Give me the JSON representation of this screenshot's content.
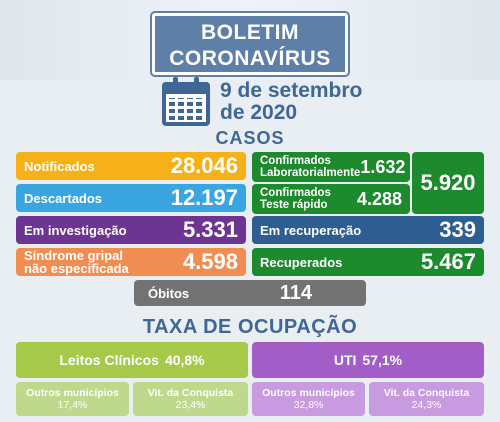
{
  "header": {
    "title_line1": "BOLETIM",
    "title_line2": "CORONAVÍRUS",
    "date_line1": "9 de setembro",
    "date_line2": "de 2020"
  },
  "casos": {
    "title": "CASOS",
    "notificados": {
      "label": "Notificados",
      "value": "28.046"
    },
    "descartados": {
      "label": "Descartados",
      "value": "12.197"
    },
    "em_investigacao": {
      "label": "Em investigação",
      "value": "5.331"
    },
    "sindrome": {
      "label_line1": "Síndrome gripal",
      "label_line2": "não especificada",
      "value": "4.598"
    },
    "conf_lab": {
      "label_line1": "Confirmados",
      "label_line2": "Laboratorialmente",
      "value": "1.632"
    },
    "conf_rapido": {
      "label_line1": "Confirmados",
      "label_line2": "Teste rápido",
      "value": "4.288"
    },
    "confirmados_total": "5.920",
    "em_recuperacao": {
      "label": "Em recuperação",
      "value": "339"
    },
    "recuperados": {
      "label": "Recuperados",
      "value": "5.467"
    },
    "obitos": {
      "label": "Óbitos",
      "value": "114"
    }
  },
  "ocupacao": {
    "title": "TAXA DE OCUPAÇÃO",
    "leitos": {
      "label": "Leitos Clínicos",
      "value": "40,8%"
    },
    "uti": {
      "label": "UTI",
      "value": "57,1%"
    },
    "leitos_outros": {
      "label": "Outros municípios",
      "value": "17,4%"
    },
    "leitos_vitoria": {
      "label": "Vit. da Conquista",
      "value": "23,4%"
    },
    "uti_outros": {
      "label": "Outros municípios",
      "value": "32,8%"
    },
    "uti_vitoria": {
      "label": "Vit. da Conquista",
      "value": "24,3%"
    }
  },
  "colors": {
    "brand_blue": "#3f6795",
    "yellow": "#f6b119",
    "light_blue": "#3aa6e1",
    "purple": "#6b3591",
    "orange": "#f08d52",
    "green": "#1d8a2d",
    "dark_blue": "#2e5d92",
    "gray": "#727272",
    "lime": "#a6c94a",
    "violet": "#a35dc7"
  },
  "icons": {
    "calendar": "calendar-icon"
  }
}
